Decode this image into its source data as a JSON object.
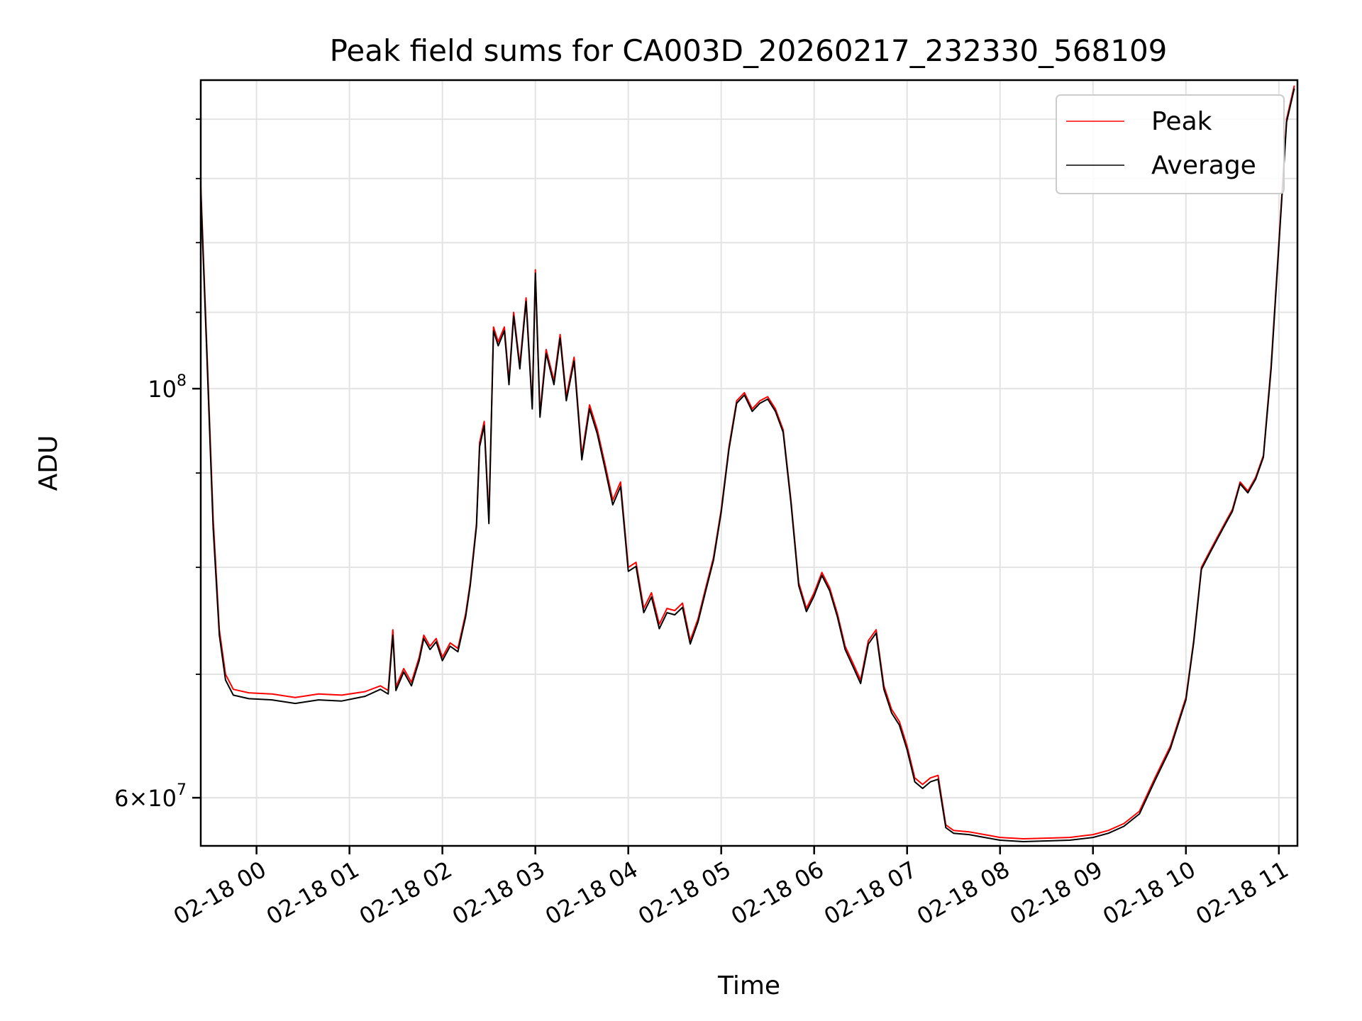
{
  "chart_data": {
    "type": "line",
    "title": "Peak field sums for CA003D_20260217_232330_568109",
    "xlabel": "Time",
    "ylabel": "ADU",
    "yscale": "log",
    "grid": true,
    "legend_position": "top-right",
    "xlim": [
      "02-17 23:24",
      "02-18 11:12"
    ],
    "ylim": [
      56500000,
      147000000
    ],
    "x_ticks": [
      "02-18 00",
      "02-18 01",
      "02-18 02",
      "02-18 03",
      "02-18 04",
      "02-18 05",
      "02-18 06",
      "02-18 07",
      "02-18 08",
      "02-18 09",
      "02-18 10",
      "02-18 11"
    ],
    "y_ticks": [
      {
        "value": 100000000,
        "base": "10",
        "exp": "8"
      },
      {
        "value": 60000000,
        "base": "6×10",
        "exp": "7"
      }
    ],
    "colors": {
      "peak": "#ff0000",
      "average": "#000000"
    },
    "series": [
      {
        "name": "Peak",
        "color": "#ff0000",
        "points": [
          [
            "02-17 23:24",
            129000000
          ],
          [
            "02-17 23:28",
            105000000
          ],
          [
            "02-17 23:32",
            85000000
          ],
          [
            "02-17 23:36",
            74000000
          ],
          [
            "02-17 23:40",
            70000000
          ],
          [
            "02-17 23:45",
            68700000
          ],
          [
            "02-17 23:55",
            68400000
          ],
          [
            "02-18 00:10",
            68300000
          ],
          [
            "02-18 00:25",
            68000000
          ],
          [
            "02-18 00:40",
            68300000
          ],
          [
            "02-18 00:55",
            68200000
          ],
          [
            "02-18 01:10",
            68500000
          ],
          [
            "02-18 01:20",
            69000000
          ],
          [
            "02-18 01:25",
            68600000
          ],
          [
            "02-18 01:28",
            74000000
          ],
          [
            "02-18 01:30",
            68900000
          ],
          [
            "02-18 01:35",
            70500000
          ],
          [
            "02-18 01:40",
            69300000
          ],
          [
            "02-18 01:45",
            71500000
          ],
          [
            "02-18 01:48",
            73500000
          ],
          [
            "02-18 01:52",
            72500000
          ],
          [
            "02-18 01:56",
            73200000
          ],
          [
            "02-18 02:00",
            71500000
          ],
          [
            "02-18 02:05",
            72800000
          ],
          [
            "02-18 02:10",
            72300000
          ],
          [
            "02-18 02:15",
            75500000
          ],
          [
            "02-18 02:18",
            78500000
          ],
          [
            "02-18 02:22",
            84500000
          ],
          [
            "02-18 02:24",
            93500000
          ],
          [
            "02-18 02:27",
            96000000
          ],
          [
            "02-18 02:30",
            85000000
          ],
          [
            "02-18 02:33",
            108000000
          ],
          [
            "02-18 02:36",
            106000000
          ],
          [
            "02-18 02:40",
            108000000
          ],
          [
            "02-18 02:43",
            101000000
          ],
          [
            "02-18 02:46",
            110000000
          ],
          [
            "02-18 02:50",
            103000000
          ],
          [
            "02-18 02:54",
            112000000
          ],
          [
            "02-18 02:58",
            98000000
          ],
          [
            "02-18 03:00",
            116000000
          ],
          [
            "02-18 03:03",
            97000000
          ],
          [
            "02-18 03:07",
            105000000
          ],
          [
            "02-18 03:12",
            101000000
          ],
          [
            "02-18 03:16",
            107000000
          ],
          [
            "02-18 03:20",
            99000000
          ],
          [
            "02-18 03:25",
            104000000
          ],
          [
            "02-18 03:30",
            92000000
          ],
          [
            "02-18 03:35",
            98000000
          ],
          [
            "02-18 03:40",
            95000000
          ],
          [
            "02-18 03:45",
            91000000
          ],
          [
            "02-18 03:50",
            87000000
          ],
          [
            "02-18 03:55",
            89000000
          ],
          [
            "02-18 04:00",
            80000000
          ],
          [
            "02-18 04:05",
            80500000
          ],
          [
            "02-18 04:10",
            76000000
          ],
          [
            "02-18 04:15",
            77500000
          ],
          [
            "02-18 04:20",
            74500000
          ],
          [
            "02-18 04:25",
            76000000
          ],
          [
            "02-18 04:30",
            75800000
          ],
          [
            "02-18 04:35",
            76500000
          ],
          [
            "02-18 04:40",
            73000000
          ],
          [
            "02-18 04:45",
            75000000
          ],
          [
            "02-18 04:50",
            78000000
          ],
          [
            "02-18 04:55",
            81000000
          ],
          [
            "02-18 05:00",
            86000000
          ],
          [
            "02-18 05:05",
            93000000
          ],
          [
            "02-18 05:10",
            98500000
          ],
          [
            "02-18 05:15",
            99500000
          ],
          [
            "02-18 05:20",
            97500000
          ],
          [
            "02-18 05:25",
            98500000
          ],
          [
            "02-18 05:30",
            99000000
          ],
          [
            "02-18 05:35",
            97500000
          ],
          [
            "02-18 05:40",
            95000000
          ],
          [
            "02-18 05:45",
            87000000
          ],
          [
            "02-18 05:50",
            78500000
          ],
          [
            "02-18 05:55",
            76000000
          ],
          [
            "02-18 06:00",
            77500000
          ],
          [
            "02-18 06:05",
            79500000
          ],
          [
            "02-18 06:10",
            78000000
          ],
          [
            "02-18 06:15",
            75500000
          ],
          [
            "02-18 06:20",
            72500000
          ],
          [
            "02-18 06:25",
            71000000
          ],
          [
            "02-18 06:30",
            69500000
          ],
          [
            "02-18 06:35",
            73000000
          ],
          [
            "02-18 06:40",
            74000000
          ],
          [
            "02-18 06:45",
            69000000
          ],
          [
            "02-18 06:50",
            67000000
          ],
          [
            "02-18 06:55",
            66000000
          ],
          [
            "02-18 07:00",
            64000000
          ],
          [
            "02-18 07:05",
            61500000
          ],
          [
            "02-18 07:10",
            61000000
          ],
          [
            "02-18 07:15",
            61500000
          ],
          [
            "02-18 07:20",
            61700000
          ],
          [
            "02-18 07:25",
            58000000
          ],
          [
            "02-18 07:30",
            57600000
          ],
          [
            "02-18 07:40",
            57500000
          ],
          [
            "02-18 07:50",
            57300000
          ],
          [
            "02-18 08:00",
            57100000
          ],
          [
            "02-18 08:15",
            57000000
          ],
          [
            "02-18 08:30",
            57050000
          ],
          [
            "02-18 08:45",
            57100000
          ],
          [
            "02-18 09:00",
            57300000
          ],
          [
            "02-18 09:10",
            57600000
          ],
          [
            "02-18 09:20",
            58100000
          ],
          [
            "02-18 09:30",
            59000000
          ],
          [
            "02-18 09:40",
            61500000
          ],
          [
            "02-18 09:50",
            64000000
          ],
          [
            "02-18 10:00",
            68000000
          ],
          [
            "02-18 10:05",
            73000000
          ],
          [
            "02-18 10:10",
            80000000
          ],
          [
            "02-18 10:15",
            81500000
          ],
          [
            "02-18 10:20",
            83000000
          ],
          [
            "02-18 10:25",
            84500000
          ],
          [
            "02-18 10:30",
            86000000
          ],
          [
            "02-18 10:35",
            89000000
          ],
          [
            "02-18 10:40",
            88000000
          ],
          [
            "02-18 10:45",
            89500000
          ],
          [
            "02-18 10:50",
            92000000
          ],
          [
            "02-18 10:55",
            103000000
          ],
          [
            "02-18 11:00",
            120000000
          ],
          [
            "02-18 11:05",
            140000000
          ],
          [
            "02-18 11:10",
            146000000
          ]
        ]
      },
      {
        "name": "Average",
        "color": "#000000",
        "points": [
          [
            "02-17 23:24",
            128000000
          ],
          [
            "02-17 23:28",
            104000000
          ],
          [
            "02-17 23:32",
            84000000
          ],
          [
            "02-17 23:36",
            73500000
          ],
          [
            "02-17 23:40",
            69500000
          ],
          [
            "02-17 23:45",
            68200000
          ],
          [
            "02-17 23:55",
            67900000
          ],
          [
            "02-18 00:10",
            67800000
          ],
          [
            "02-18 00:25",
            67500000
          ],
          [
            "02-18 00:40",
            67800000
          ],
          [
            "02-18 00:55",
            67700000
          ],
          [
            "02-18 01:10",
            68100000
          ],
          [
            "02-18 01:20",
            68700000
          ],
          [
            "02-18 01:25",
            68300000
          ],
          [
            "02-18 01:28",
            73500000
          ],
          [
            "02-18 01:30",
            68600000
          ],
          [
            "02-18 01:35",
            70200000
          ],
          [
            "02-18 01:40",
            69000000
          ],
          [
            "02-18 01:45",
            71200000
          ],
          [
            "02-18 01:48",
            73200000
          ],
          [
            "02-18 01:52",
            72200000
          ],
          [
            "02-18 01:56",
            72900000
          ],
          [
            "02-18 02:00",
            71200000
          ],
          [
            "02-18 02:05",
            72500000
          ],
          [
            "02-18 02:10",
            72000000
          ],
          [
            "02-18 02:15",
            75200000
          ],
          [
            "02-18 02:18",
            78200000
          ],
          [
            "02-18 02:22",
            84200000
          ],
          [
            "02-18 02:24",
            93000000
          ],
          [
            "02-18 02:27",
            95500000
          ],
          [
            "02-18 02:30",
            84500000
          ],
          [
            "02-18 02:33",
            107500000
          ],
          [
            "02-18 02:36",
            105500000
          ],
          [
            "02-18 02:40",
            107500000
          ],
          [
            "02-18 02:43",
            100500000
          ],
          [
            "02-18 02:46",
            109500000
          ],
          [
            "02-18 02:50",
            102500000
          ],
          [
            "02-18 02:54",
            111500000
          ],
          [
            "02-18 02:58",
            97500000
          ],
          [
            "02-18 03:00",
            115500000
          ],
          [
            "02-18 03:03",
            96500000
          ],
          [
            "02-18 03:07",
            104500000
          ],
          [
            "02-18 03:12",
            100500000
          ],
          [
            "02-18 03:16",
            106500000
          ],
          [
            "02-18 03:20",
            98500000
          ],
          [
            "02-18 03:25",
            103500000
          ],
          [
            "02-18 03:30",
            91500000
          ],
          [
            "02-18 03:35",
            97500000
          ],
          [
            "02-18 03:40",
            94500000
          ],
          [
            "02-18 03:45",
            90500000
          ],
          [
            "02-18 03:50",
            86500000
          ],
          [
            "02-18 03:55",
            88500000
          ],
          [
            "02-18 04:00",
            79600000
          ],
          [
            "02-18 04:05",
            80100000
          ],
          [
            "02-18 04:10",
            75600000
          ],
          [
            "02-18 04:15",
            77100000
          ],
          [
            "02-18 04:20",
            74100000
          ],
          [
            "02-18 04:25",
            75600000
          ],
          [
            "02-18 04:30",
            75400000
          ],
          [
            "02-18 04:35",
            76100000
          ],
          [
            "02-18 04:40",
            72700000
          ],
          [
            "02-18 04:45",
            74700000
          ],
          [
            "02-18 04:50",
            77700000
          ],
          [
            "02-18 04:55",
            80700000
          ],
          [
            "02-18 05:00",
            85700000
          ],
          [
            "02-18 05:05",
            92700000
          ],
          [
            "02-18 05:10",
            98200000
          ],
          [
            "02-18 05:15",
            99200000
          ],
          [
            "02-18 05:20",
            97200000
          ],
          [
            "02-18 05:25",
            98200000
          ],
          [
            "02-18 05:30",
            98700000
          ],
          [
            "02-18 05:35",
            97200000
          ],
          [
            "02-18 05:40",
            94700000
          ],
          [
            "02-18 05:45",
            86700000
          ],
          [
            "02-18 05:50",
            78200000
          ],
          [
            "02-18 05:55",
            75700000
          ],
          [
            "02-18 06:00",
            77200000
          ],
          [
            "02-18 06:05",
            79200000
          ],
          [
            "02-18 06:10",
            77700000
          ],
          [
            "02-18 06:15",
            75200000
          ],
          [
            "02-18 06:20",
            72200000
          ],
          [
            "02-18 06:25",
            70700000
          ],
          [
            "02-18 06:30",
            69200000
          ],
          [
            "02-18 06:35",
            72700000
          ],
          [
            "02-18 06:40",
            73700000
          ],
          [
            "02-18 06:45",
            68700000
          ],
          [
            "02-18 06:50",
            66700000
          ],
          [
            "02-18 06:55",
            65700000
          ],
          [
            "02-18 07:00",
            63700000
          ],
          [
            "02-18 07:05",
            61200000
          ],
          [
            "02-18 07:10",
            60700000
          ],
          [
            "02-18 07:15",
            61200000
          ],
          [
            "02-18 07:20",
            61400000
          ],
          [
            "02-18 07:25",
            57800000
          ],
          [
            "02-18 07:30",
            57400000
          ],
          [
            "02-18 07:40",
            57300000
          ],
          [
            "02-18 07:50",
            57100000
          ],
          [
            "02-18 08:00",
            56900000
          ],
          [
            "02-18 08:15",
            56800000
          ],
          [
            "02-18 08:30",
            56850000
          ],
          [
            "02-18 08:45",
            56900000
          ],
          [
            "02-18 09:00",
            57100000
          ],
          [
            "02-18 09:10",
            57400000
          ],
          [
            "02-18 09:20",
            57900000
          ],
          [
            "02-18 09:30",
            58800000
          ],
          [
            "02-18 09:40",
            61300000
          ],
          [
            "02-18 09:50",
            63800000
          ],
          [
            "02-18 10:00",
            67800000
          ],
          [
            "02-18 10:05",
            72800000
          ],
          [
            "02-18 10:10",
            79800000
          ],
          [
            "02-18 10:15",
            81300000
          ],
          [
            "02-18 10:20",
            82800000
          ],
          [
            "02-18 10:25",
            84300000
          ],
          [
            "02-18 10:30",
            85800000
          ],
          [
            "02-18 10:35",
            88800000
          ],
          [
            "02-18 10:40",
            87800000
          ],
          [
            "02-18 10:45",
            89300000
          ],
          [
            "02-18 10:50",
            91800000
          ],
          [
            "02-18 10:55",
            102500000
          ],
          [
            "02-18 11:00",
            119500000
          ],
          [
            "02-18 11:05",
            139500000
          ],
          [
            "02-18 11:10",
            145500000
          ]
        ]
      }
    ]
  }
}
